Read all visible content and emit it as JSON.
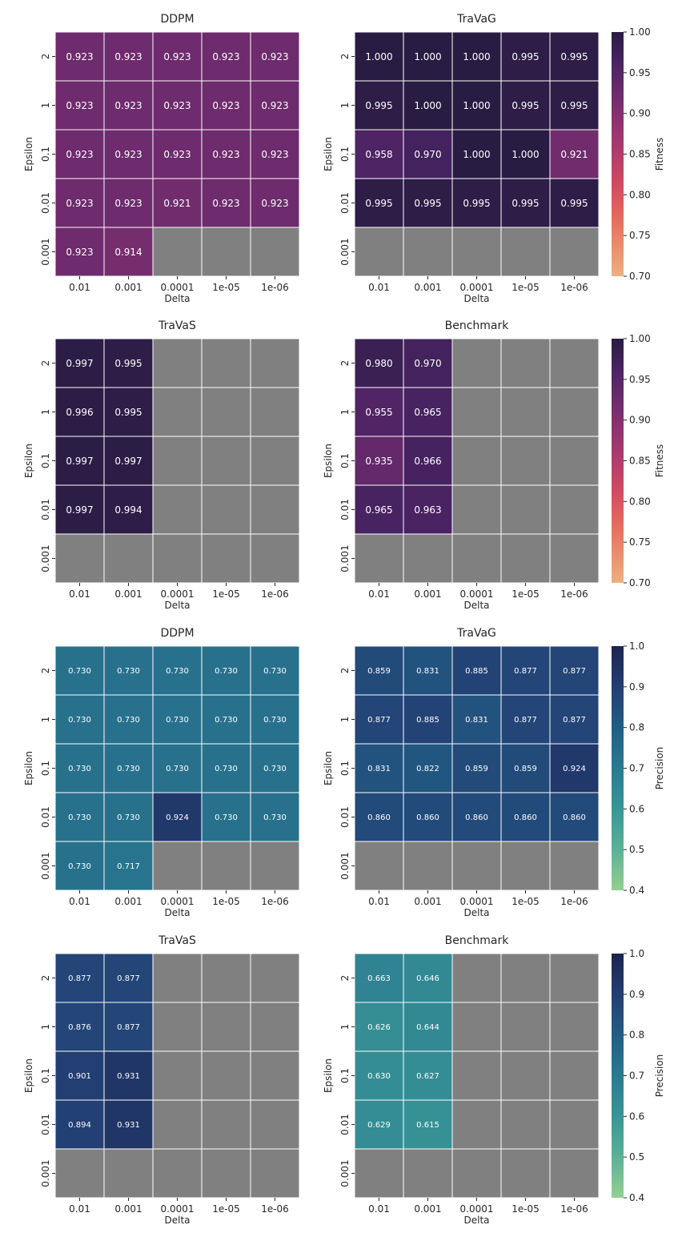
{
  "chart_data": {
    "type": "heatmap",
    "x_categories": [
      "0.01",
      "0.001",
      "0.0001",
      "1e-05",
      "1e-06"
    ],
    "y_categories": [
      "2",
      "1",
      "0.1",
      "0.01",
      "0.001"
    ],
    "xlabel": "Delta",
    "ylabel": "Epsilon",
    "missing_color": "#808080",
    "colorbars": [
      {
        "id": "fitness",
        "label": "Fitness",
        "min": 0.7,
        "max": 1.0,
        "ticks": [
          "0.70",
          "0.75",
          "0.80",
          "0.85",
          "0.90",
          "0.95",
          "1.00"
        ],
        "tick_values": [
          0.7,
          0.75,
          0.8,
          0.85,
          0.9,
          0.95,
          1.0
        ],
        "colors": [
          "#edb081",
          "#e98d6b",
          "#e3685c",
          "#d14a61",
          "#b13c6c",
          "#8f3371",
          "#6c2b6d",
          "#4a2363",
          "#291c43"
        ]
      },
      {
        "id": "precision",
        "label": "Precision",
        "min": 0.4,
        "max": 1.0,
        "ticks": [
          "0.4",
          "0.5",
          "0.6",
          "0.7",
          "0.8",
          "0.9",
          "1.0"
        ],
        "tick_values": [
          0.4,
          0.5,
          0.6,
          0.7,
          0.8,
          0.9,
          1.0
        ],
        "colors": [
          "#94cf91",
          "#5cb196",
          "#389596",
          "#2a7990",
          "#215d85",
          "#233e73",
          "#1c2450"
        ]
      }
    ],
    "panels": [
      {
        "title": "DDPM",
        "metric": "fitness",
        "values": [
          [
            0.923,
            0.923,
            0.923,
            0.923,
            0.923
          ],
          [
            0.923,
            0.923,
            0.923,
            0.923,
            0.923
          ],
          [
            0.923,
            0.923,
            0.923,
            0.923,
            0.923
          ],
          [
            0.923,
            0.923,
            0.921,
            0.923,
            0.923
          ],
          [
            0.923,
            0.914,
            null,
            null,
            null
          ]
        ],
        "labels": [
          [
            "0.923",
            "0.923",
            "0.923",
            "0.923",
            "0.923"
          ],
          [
            "0.923",
            "0.923",
            "0.923",
            "0.923",
            "0.923"
          ],
          [
            "0.923",
            "0.923",
            "0.923",
            "0.923",
            "0.923"
          ],
          [
            "0.923",
            "0.923",
            "0.921",
            "0.923",
            "0.923"
          ],
          [
            "0.923",
            "0.914",
            "",
            "",
            ""
          ]
        ]
      },
      {
        "title": "TraVaG",
        "metric": "fitness",
        "values": [
          [
            1.0,
            1.0,
            1.0,
            0.995,
            0.995
          ],
          [
            0.995,
            1.0,
            1.0,
            0.995,
            0.995
          ],
          [
            0.958,
            0.97,
            1.0,
            1.0,
            0.921
          ],
          [
            0.995,
            0.995,
            0.995,
            0.995,
            0.995
          ],
          [
            null,
            null,
            null,
            null,
            null
          ]
        ],
        "labels": [
          [
            "1.000",
            "1.000",
            "1.000",
            "0.995",
            "0.995"
          ],
          [
            "0.995",
            "1.000",
            "1.000",
            "0.995",
            "0.995"
          ],
          [
            "0.958",
            "0.970",
            "1.000",
            "1.000",
            "0.921"
          ],
          [
            "0.995",
            "0.995",
            "0.995",
            "0.995",
            "0.995"
          ],
          [
            "",
            "",
            "",
            "",
            ""
          ]
        ]
      },
      {
        "title": "TraVaS",
        "metric": "fitness",
        "values": [
          [
            0.997,
            0.995,
            null,
            null,
            null
          ],
          [
            0.996,
            0.995,
            null,
            null,
            null
          ],
          [
            0.997,
            0.997,
            null,
            null,
            null
          ],
          [
            0.997,
            0.994,
            null,
            null,
            null
          ],
          [
            null,
            null,
            null,
            null,
            null
          ]
        ],
        "labels": [
          [
            "0.997",
            "0.995",
            "",
            "",
            ""
          ],
          [
            "0.996",
            "0.995",
            "",
            "",
            ""
          ],
          [
            "0.997",
            "0.997",
            "",
            "",
            ""
          ],
          [
            "0.997",
            "0.994",
            "",
            "",
            ""
          ],
          [
            "",
            "",
            "",
            "",
            ""
          ]
        ]
      },
      {
        "title": "Benchmark",
        "metric": "fitness",
        "values": [
          [
            0.98,
            0.97,
            null,
            null,
            null
          ],
          [
            0.955,
            0.965,
            null,
            null,
            null
          ],
          [
            0.935,
            0.966,
            null,
            null,
            null
          ],
          [
            0.965,
            0.963,
            null,
            null,
            null
          ],
          [
            null,
            null,
            null,
            null,
            null
          ]
        ],
        "labels": [
          [
            "0.980",
            "0.970",
            "",
            "",
            ""
          ],
          [
            "0.955",
            "0.965",
            "",
            "",
            ""
          ],
          [
            "0.935",
            "0.966",
            "",
            "",
            ""
          ],
          [
            "0.965",
            "0.963",
            "",
            "",
            ""
          ],
          [
            "",
            "",
            "",
            "",
            ""
          ]
        ]
      },
      {
        "title": "DDPM",
        "metric": "precision",
        "values": [
          [
            0.73,
            0.73,
            0.73,
            0.73,
            0.73
          ],
          [
            0.73,
            0.73,
            0.73,
            0.73,
            0.73
          ],
          [
            0.73,
            0.73,
            0.73,
            0.73,
            0.73
          ],
          [
            0.73,
            0.73,
            0.924,
            0.73,
            0.73
          ],
          [
            0.73,
            0.717,
            null,
            null,
            null
          ]
        ],
        "labels": [
          [
            "0.730",
            "0.730",
            "0.730",
            "0.730",
            "0.730"
          ],
          [
            "0.730",
            "0.730",
            "0.730",
            "0.730",
            "0.730"
          ],
          [
            "0.730",
            "0.730",
            "0.730",
            "0.730",
            "0.730"
          ],
          [
            "0.730",
            "0.730",
            "0.924",
            "0.730",
            "0.730"
          ],
          [
            "0.730",
            "0.717",
            "",
            "",
            ""
          ]
        ]
      },
      {
        "title": "TraVaG",
        "metric": "precision",
        "values": [
          [
            0.859,
            0.831,
            0.885,
            0.877,
            0.877
          ],
          [
            0.877,
            0.885,
            0.831,
            0.877,
            0.877
          ],
          [
            0.831,
            0.822,
            0.859,
            0.859,
            0.924
          ],
          [
            0.86,
            0.86,
            0.86,
            0.86,
            0.86
          ],
          [
            null,
            null,
            null,
            null,
            null
          ]
        ],
        "labels": [
          [
            "0.859",
            "0.831",
            "0.885",
            "0.877",
            "0.877"
          ],
          [
            "0.877",
            "0.885",
            "0.831",
            "0.877",
            "0.877"
          ],
          [
            "0.831",
            "0.822",
            "0.859",
            "0.859",
            "0.924"
          ],
          [
            "0.860",
            "0.860",
            "0.860",
            "0.860",
            "0.860"
          ],
          [
            "",
            "",
            "",
            "",
            ""
          ]
        ]
      },
      {
        "title": "TraVaS",
        "metric": "precision",
        "values": [
          [
            0.877,
            0.877,
            null,
            null,
            null
          ],
          [
            0.876,
            0.877,
            null,
            null,
            null
          ],
          [
            0.901,
            0.931,
            null,
            null,
            null
          ],
          [
            0.894,
            0.931,
            null,
            null,
            null
          ],
          [
            null,
            null,
            null,
            null,
            null
          ]
        ],
        "labels": [
          [
            "0.877",
            "0.877",
            "",
            "",
            ""
          ],
          [
            "0.876",
            "0.877",
            "",
            "",
            ""
          ],
          [
            "0.901",
            "0.931",
            "",
            "",
            ""
          ],
          [
            "0.894",
            "0.931",
            "",
            "",
            ""
          ],
          [
            "",
            "",
            "",
            "",
            ""
          ]
        ]
      },
      {
        "title": "Benchmark",
        "metric": "precision",
        "values": [
          [
            0.663,
            0.646,
            null,
            null,
            null
          ],
          [
            0.626,
            0.644,
            null,
            null,
            null
          ],
          [
            0.63,
            0.627,
            null,
            null,
            null
          ],
          [
            0.629,
            0.615,
            null,
            null,
            null
          ],
          [
            null,
            null,
            null,
            null,
            null
          ]
        ],
        "labels": [
          [
            "0.663",
            "0.646",
            "",
            "",
            ""
          ],
          [
            "0.626",
            "0.644",
            "",
            "",
            ""
          ],
          [
            "0.630",
            "0.627",
            "",
            "",
            ""
          ],
          [
            "0.629",
            "0.615",
            "",
            "",
            ""
          ],
          [
            "",
            "",
            "",
            "",
            ""
          ]
        ]
      }
    ]
  }
}
